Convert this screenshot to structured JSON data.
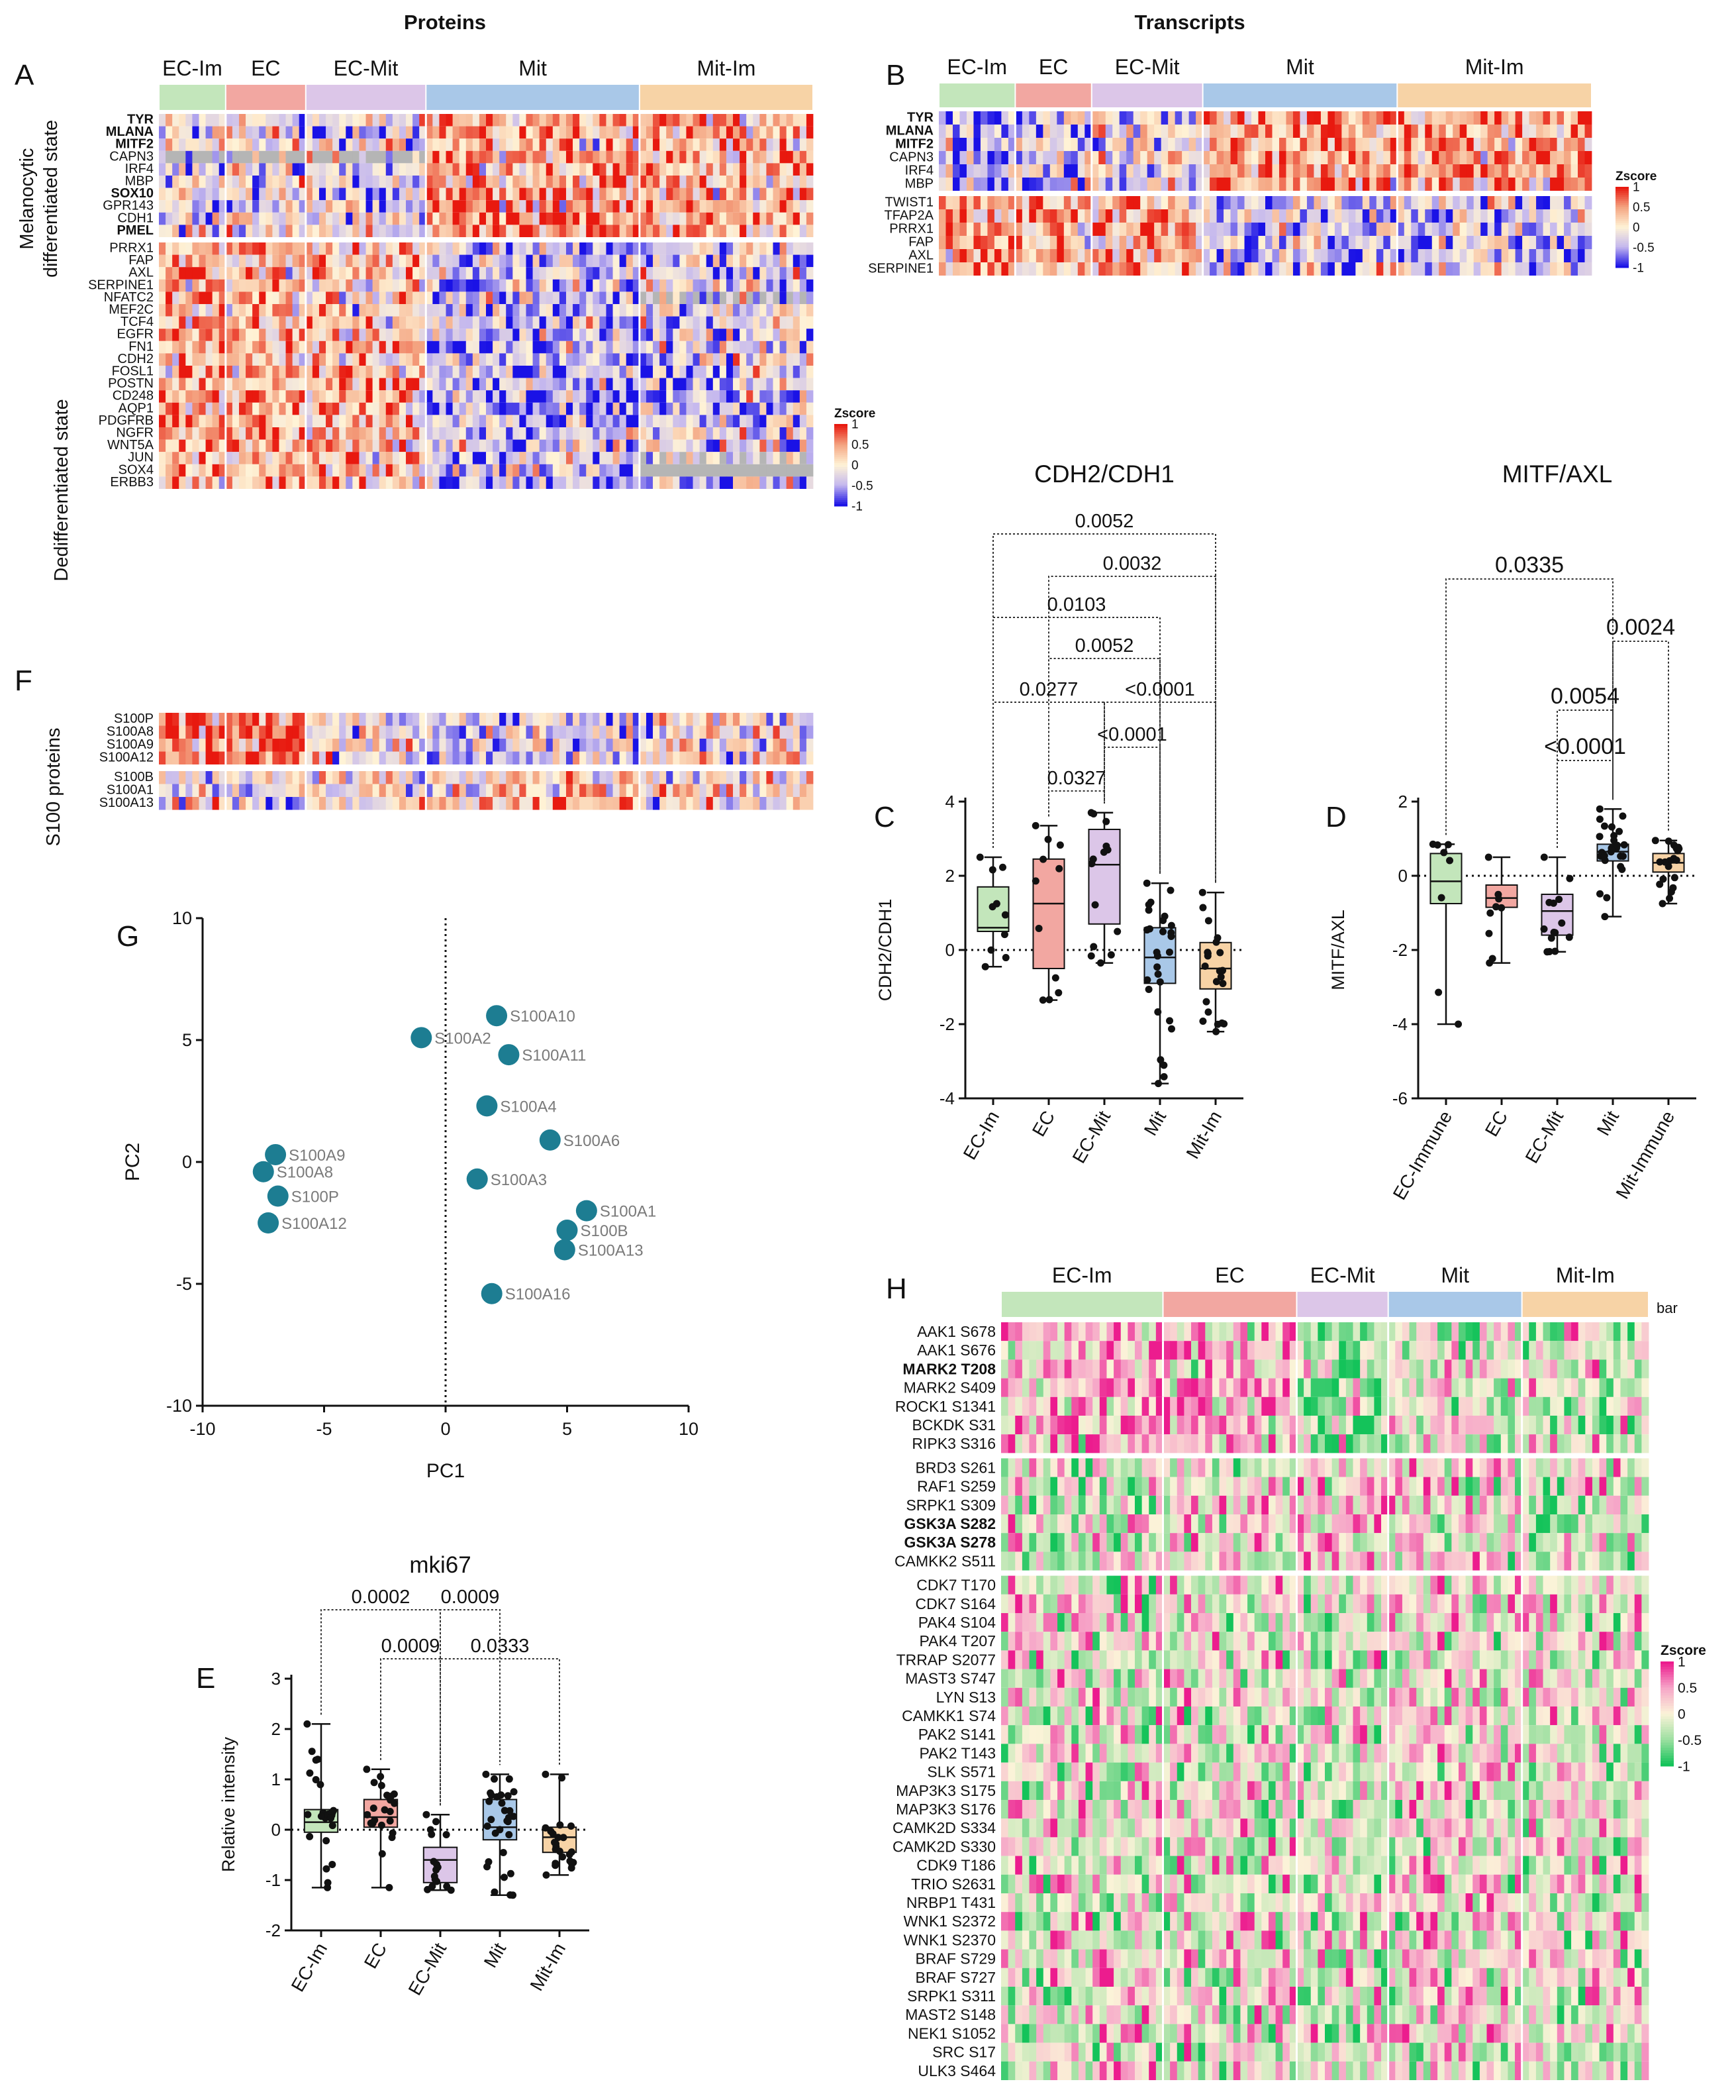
{
  "headers": {
    "proteins": "Proteins",
    "transcripts": "Transcripts"
  },
  "groups": {
    "short": [
      "EC-Im",
      "EC",
      "EC-Mit",
      "Mit",
      "Mit-Im"
    ],
    "colors": [
      "#c3e6bb",
      "#f2a7a1",
      "#dcc6e8",
      "#a9c8e8",
      "#f7d3a6"
    ]
  },
  "panel_labels": {
    "A": "A",
    "B": "B",
    "C": "C",
    "D": "D",
    "E": "E",
    "F": "F",
    "G": "G",
    "H": "H"
  },
  "panelA": {
    "side_top_line1": "Melanocytic",
    "side_top_line2": "differentiated state",
    "side_bottom": "Dedifferentiated state",
    "rows": [
      {
        "label": "TYR",
        "bold": true
      },
      {
        "label": "MLANA",
        "bold": true
      },
      {
        "label": "MITF2",
        "bold": true
      },
      {
        "label": "CAPN3",
        "bold": false
      },
      {
        "label": "IRF4",
        "bold": false
      },
      {
        "label": "MBP",
        "bold": false
      },
      {
        "label": "SOX10",
        "bold": true
      },
      {
        "label": "GPR143",
        "bold": false
      },
      {
        "label": "CDH1",
        "bold": false
      },
      {
        "label": "PMEL",
        "bold": true
      },
      {
        "label": "PRRX1",
        "bold": false
      },
      {
        "label": "FAP",
        "bold": false
      },
      {
        "label": "AXL",
        "bold": false
      },
      {
        "label": "SERPINE1",
        "bold": false
      },
      {
        "label": "NFATC2",
        "bold": false
      },
      {
        "label": "MEF2C",
        "bold": false
      },
      {
        "label": "TCF4",
        "bold": false
      },
      {
        "label": "EGFR",
        "bold": false
      },
      {
        "label": "FN1",
        "bold": false
      },
      {
        "label": "CDH2",
        "bold": false
      },
      {
        "label": "FOSL1",
        "bold": false
      },
      {
        "label": "POSTN",
        "bold": false
      },
      {
        "label": "CD248",
        "bold": false
      },
      {
        "label": "AQP1",
        "bold": false
      },
      {
        "label": "PDGFRB",
        "bold": false
      },
      {
        "label": "NGFR",
        "bold": false
      },
      {
        "label": "WNT5A",
        "bold": false
      },
      {
        "label": "JUN",
        "bold": false
      },
      {
        "label": "SOX4",
        "bold": false
      },
      {
        "label": "ERBB3",
        "bold": false
      }
    ]
  },
  "panelF": {
    "side": "S100 proteins",
    "rows": [
      "S100P",
      "S100A8",
      "S100A9",
      "S100A12",
      "S100B",
      "S100A1",
      "S100A13"
    ]
  },
  "panelB": {
    "rows": [
      {
        "label": "TYR",
        "bold": true
      },
      {
        "label": "MLANA",
        "bold": true
      },
      {
        "label": "MITF2",
        "bold": true
      },
      {
        "label": "CAPN3",
        "bold": false
      },
      {
        "label": "IRF4",
        "bold": false
      },
      {
        "label": "MBP",
        "bold": false
      },
      {
        "label": "TWIST1",
        "bold": false
      },
      {
        "label": "TFAP2A",
        "bold": false
      },
      {
        "label": "PRRX1",
        "bold": false
      },
      {
        "label": "FAP",
        "bold": false
      },
      {
        "label": "AXL",
        "bold": false
      },
      {
        "label": "SERPINE1",
        "bold": false
      }
    ]
  },
  "zscore_legend": {
    "title": "Zscore",
    "ticks": [
      "1",
      "0.5",
      "0",
      "-0.5",
      "-1"
    ]
  },
  "panelH": {
    "groups": [
      "EC-Im",
      "EC",
      "EC-Mit",
      "Mit",
      "Mit-Im"
    ],
    "bar_label": "bar",
    "rows": [
      {
        "label": "AAK1 S678",
        "bold": false
      },
      {
        "label": "AAK1 S676",
        "bold": false
      },
      {
        "label": "MARK2 T208",
        "bold": true
      },
      {
        "label": "MARK2 S409",
        "bold": false
      },
      {
        "label": "ROCK1 S1341",
        "bold": false
      },
      {
        "label": "BCKDK S31",
        "bold": false
      },
      {
        "label": "RIPK3 S316",
        "bold": false
      },
      {
        "label": "BRD3 S261",
        "bold": false
      },
      {
        "label": "RAF1 S259",
        "bold": false
      },
      {
        "label": "SRPK1 S309",
        "bold": false
      },
      {
        "label": "GSK3A S282",
        "bold": true
      },
      {
        "label": "GSK3A S278",
        "bold": true
      },
      {
        "label": "CAMKK2 S511",
        "bold": false
      },
      {
        "label": "CDK7 T170",
        "bold": false
      },
      {
        "label": "CDK7 S164",
        "bold": false
      },
      {
        "label": "PAK4 S104",
        "bold": false
      },
      {
        "label": "PAK4 T207",
        "bold": false
      },
      {
        "label": "TRRAP S2077",
        "bold": false
      },
      {
        "label": "MAST3 S747",
        "bold": false
      },
      {
        "label": "LYN S13",
        "bold": false
      },
      {
        "label": "CAMKK1 S74",
        "bold": false
      },
      {
        "label": "PAK2 S141",
        "bold": false
      },
      {
        "label": "PAK2 T143",
        "bold": false
      },
      {
        "label": "SLK S571",
        "bold": false
      },
      {
        "label": "MAP3K3 S175",
        "bold": false
      },
      {
        "label": "MAP3K3 S176",
        "bold": false
      },
      {
        "label": "CAMK2D S334",
        "bold": false
      },
      {
        "label": "CAMK2D S330",
        "bold": false
      },
      {
        "label": "CDK9 T186",
        "bold": false
      },
      {
        "label": "TRIO S2631",
        "bold": false
      },
      {
        "label": "NRBP1 T431",
        "bold": false
      },
      {
        "label": "WNK1 S2372",
        "bold": false
      },
      {
        "label": "WNK1 S2370",
        "bold": false
      },
      {
        "label": "BRAF S729",
        "bold": false
      },
      {
        "label": "BRAF S727",
        "bold": false
      },
      {
        "label": "SRPK1 S311",
        "bold": false
      },
      {
        "label": "MAST2 S148",
        "bold": false
      },
      {
        "label": "NEK1 S1052",
        "bold": false
      },
      {
        "label": "SRC S17",
        "bold": false
      },
      {
        "label": "ULK3 S464",
        "bold": false
      }
    ]
  },
  "chart_data": [
    {
      "id": "C",
      "type": "box",
      "title": "CDH2/CDH1",
      "ylabel": "CDH2/CDH1",
      "categories": [
        "EC-Im",
        "EC",
        "EC-Mit",
        "Mit",
        "Mit-Im"
      ],
      "ylim": [
        -4,
        4
      ],
      "yticks": [
        -4,
        -2,
        0,
        2,
        4
      ],
      "boxes": [
        {
          "min": -0.45,
          "q1": 0.5,
          "median": 0.6,
          "q3": 1.7,
          "max": 2.5,
          "n": 10
        },
        {
          "min": -1.35,
          "q1": -0.5,
          "median": 1.25,
          "q3": 2.45,
          "max": 3.35,
          "n": 11
        },
        {
          "min": -0.35,
          "q1": 0.7,
          "median": 2.3,
          "q3": 3.25,
          "max": 3.7,
          "n": 14
        },
        {
          "min": -3.6,
          "q1": -0.9,
          "median": -0.2,
          "q3": 0.6,
          "max": 1.8,
          "n": 28
        },
        {
          "min": -2.2,
          "q1": -1.05,
          "median": -0.5,
          "q3": 0.2,
          "max": 1.55,
          "n": 22
        }
      ],
      "comparisons": [
        {
          "a": 0,
          "b": 4,
          "p": "0.0052"
        },
        {
          "a": 1,
          "b": 4,
          "p": "0.0032"
        },
        {
          "a": 0,
          "b": 3,
          "p": "0.0103"
        },
        {
          "a": 1,
          "b": 3,
          "p": "0.0052"
        },
        {
          "a": 0,
          "b": 2,
          "p": "0.0277"
        },
        {
          "a": 2,
          "b": 4,
          "p": "<0.0001"
        },
        {
          "a": 2,
          "b": 3,
          "p": "<0.0001"
        },
        {
          "a": 1,
          "b": 2,
          "p": "0.0327"
        }
      ]
    },
    {
      "id": "D",
      "type": "box",
      "title": "MITF/AXL",
      "ylabel": "MITF/AXL",
      "categories": [
        "EC-Immune",
        "EC",
        "EC-Mit",
        "Mit",
        "Mit-Immune"
      ],
      "ylim": [
        -6,
        2
      ],
      "yticks": [
        -6,
        -4,
        -2,
        0,
        2
      ],
      "boxes": [
        {
          "min": -4.0,
          "q1": -0.75,
          "median": -0.15,
          "q3": 0.6,
          "max": 0.85,
          "n": 8
        },
        {
          "min": -2.35,
          "q1": -0.85,
          "median": -0.6,
          "q3": -0.25,
          "max": 0.5,
          "n": 9
        },
        {
          "min": -2.05,
          "q1": -1.6,
          "median": -0.95,
          "q3": -0.5,
          "max": 0.5,
          "n": 14
        },
        {
          "min": -1.1,
          "q1": 0.4,
          "median": 0.65,
          "q3": 0.85,
          "max": 1.8,
          "n": 26
        },
        {
          "min": -0.75,
          "q1": 0.1,
          "median": 0.35,
          "q3": 0.6,
          "max": 0.95,
          "n": 20
        }
      ],
      "comparisons": [
        {
          "a": 0,
          "b": 3,
          "p": "0.0335"
        },
        {
          "a": 3,
          "b": 4,
          "p": "0.0024"
        },
        {
          "a": 2,
          "b": 3,
          "p": "0.0054"
        },
        {
          "a": 2,
          "b": 3,
          "p": "<0.0001"
        }
      ]
    },
    {
      "id": "E",
      "type": "box",
      "title": "mki67",
      "ylabel": "Relative intensity",
      "categories": [
        "EC-Im",
        "EC",
        "EC-Mit",
        "Mit",
        "Mit-Im"
      ],
      "ylim": [
        -2,
        3
      ],
      "yticks": [
        -2,
        -1,
        0,
        1,
        2,
        3
      ],
      "boxes": [
        {
          "min": -1.15,
          "q1": -0.05,
          "median": 0.15,
          "q3": 0.4,
          "max": 2.1,
          "n": 24
        },
        {
          "min": -1.15,
          "q1": 0.05,
          "median": 0.25,
          "q3": 0.6,
          "max": 1.2,
          "n": 22
        },
        {
          "min": -1.2,
          "q1": -1.05,
          "median": -0.6,
          "q3": -0.35,
          "max": 0.3,
          "n": 16
        },
        {
          "min": -1.3,
          "q1": -0.2,
          "median": 0.05,
          "q3": 0.6,
          "max": 1.1,
          "n": 30
        },
        {
          "min": -0.9,
          "q1": -0.45,
          "median": -0.15,
          "q3": 0.05,
          "max": 1.1,
          "n": 24
        }
      ],
      "comparisons": [
        {
          "a": 0,
          "b": 2,
          "p": "0.0002"
        },
        {
          "a": 2,
          "b": 3,
          "p": "0.0009"
        },
        {
          "a": 1,
          "b": 2,
          "p": "0.0009"
        },
        {
          "a": 2,
          "b": 4,
          "p": "0.0333"
        }
      ]
    },
    {
      "id": "G",
      "type": "scatter",
      "xlabel": "PC1",
      "ylabel": "PC2",
      "xlim": [
        -10,
        10
      ],
      "ylim": [
        -10,
        10
      ],
      "xticks": [
        -10,
        -5,
        0,
        5,
        10
      ],
      "yticks": [
        -10,
        -5,
        0,
        5,
        10
      ],
      "points": [
        {
          "label": "S100A10",
          "x": 2.1,
          "y": 6.0
        },
        {
          "label": "S100A2",
          "x": -1.0,
          "y": 5.1
        },
        {
          "label": "S100A11",
          "x": 2.6,
          "y": 4.4
        },
        {
          "label": "S100A4",
          "x": 1.7,
          "y": 2.3
        },
        {
          "label": "S100A6",
          "x": 4.3,
          "y": 0.9
        },
        {
          "label": "S100A3",
          "x": 1.3,
          "y": -0.7
        },
        {
          "label": "S100A9",
          "x": -7.0,
          "y": 0.3
        },
        {
          "label": "S100A8",
          "x": -7.5,
          "y": -0.4
        },
        {
          "label": "S100P",
          "x": -6.9,
          "y": -1.4
        },
        {
          "label": "S100A12",
          "x": -7.3,
          "y": -2.5
        },
        {
          "label": "S100A1",
          "x": 5.8,
          "y": -2.0
        },
        {
          "label": "S100B",
          "x": 5.0,
          "y": -2.8
        },
        {
          "label": "S100A13",
          "x": 4.9,
          "y": -3.6
        },
        {
          "label": "S100A16",
          "x": 1.9,
          "y": -5.4
        }
      ]
    }
  ]
}
